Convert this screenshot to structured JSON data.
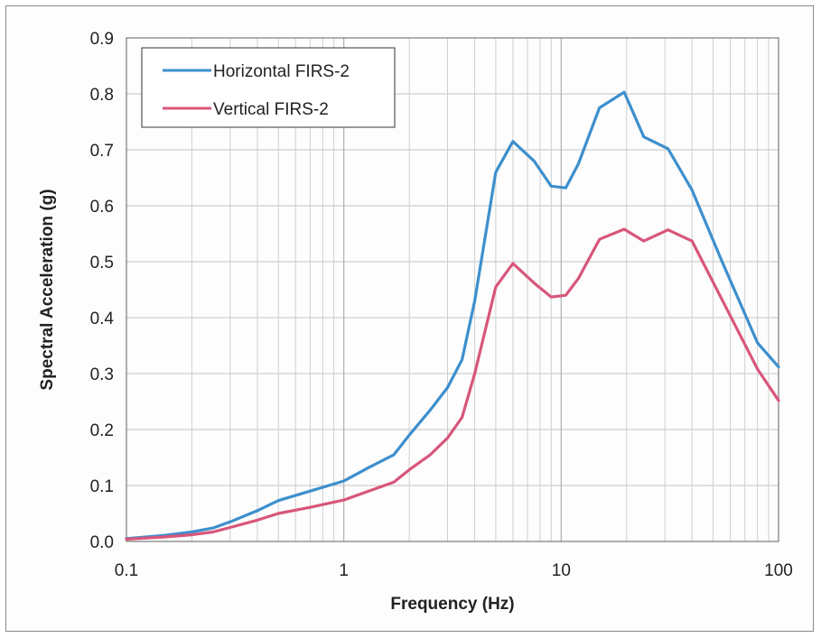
{
  "chart_data": {
    "type": "line",
    "title": "",
    "xlabel": "Frequency (Hz)",
    "ylabel": "Spectral Acceleration (g)",
    "xscale": "log",
    "xlim": [
      0.1,
      100
    ],
    "ylim": [
      0,
      0.9
    ],
    "x_ticks": [
      "0.1",
      "1",
      "10",
      "100"
    ],
    "y_ticks": [
      "0.0",
      "0.1",
      "0.2",
      "0.3",
      "0.4",
      "0.5",
      "0.6",
      "0.7",
      "0.8",
      "0.9"
    ],
    "grid": true,
    "legend_position": "top-left",
    "series": [
      {
        "name": "Horizontal FIRS-2",
        "color": "#3d8fcd",
        "x": [
          0.1,
          0.15,
          0.2,
          0.25,
          0.3,
          0.4,
          0.5,
          0.7,
          1.0,
          1.3,
          1.7,
          2.0,
          2.5,
          3.0,
          3.5,
          4.0,
          5.0,
          6.0,
          7.5,
          9.0,
          10.5,
          12.0,
          15.0,
          19.5,
          24.0,
          31.0,
          40.0,
          55.0,
          80.0,
          100.0
        ],
        "y": [
          0.005,
          0.011,
          0.017,
          0.024,
          0.035,
          0.055,
          0.073,
          0.09,
          0.108,
          0.132,
          0.155,
          0.19,
          0.235,
          0.275,
          0.325,
          0.43,
          0.66,
          0.715,
          0.68,
          0.635,
          0.632,
          0.675,
          0.775,
          0.803,
          0.723,
          0.702,
          0.628,
          0.5,
          0.355,
          0.312
        ]
      },
      {
        "name": "Vertical FIRS-2",
        "color": "#d8567a",
        "x": [
          0.1,
          0.15,
          0.2,
          0.25,
          0.3,
          0.4,
          0.5,
          0.7,
          1.0,
          1.3,
          1.7,
          2.0,
          2.5,
          3.0,
          3.5,
          4.0,
          5.0,
          6.0,
          7.5,
          9.0,
          10.5,
          12.0,
          15.0,
          19.5,
          24.0,
          31.0,
          40.0,
          55.0,
          80.0,
          100.0
        ],
        "y": [
          0.004,
          0.008,
          0.012,
          0.017,
          0.025,
          0.038,
          0.05,
          0.061,
          0.074,
          0.09,
          0.106,
          0.128,
          0.155,
          0.185,
          0.222,
          0.3,
          0.455,
          0.497,
          0.462,
          0.437,
          0.44,
          0.47,
          0.54,
          0.558,
          0.537,
          0.557,
          0.537,
          0.432,
          0.308,
          0.252
        ]
      }
    ]
  }
}
